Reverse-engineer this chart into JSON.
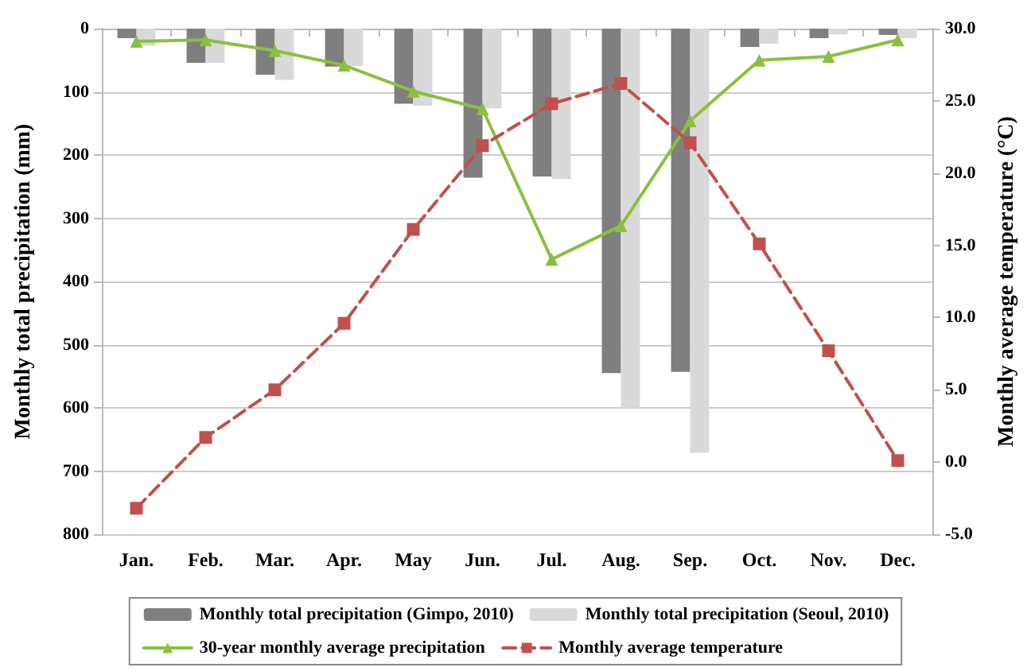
{
  "chart_data": {
    "type": "bar",
    "xlabel": null,
    "ylabel": "Monthly total precipitation (mm)",
    "y2label": "Monthly average temperature (°C)",
    "categories": [
      "Jan.",
      "Feb.",
      "Mar.",
      "Apr.",
      "May",
      "Jun.",
      "Jul.",
      "Aug.",
      "Sep.",
      "Oct.",
      "Nov.",
      "Dec."
    ],
    "series": [
      {
        "name": "Monthly total precipitation (Gimpo, 2010)",
        "color": "#7f7f7f",
        "values": [
          15,
          54,
          73,
          60,
          119,
          236,
          234,
          545,
          543,
          29,
          15,
          10
        ]
      },
      {
        "name": "Monthly total precipitation (Seoul, 2010)",
        "color": "#d9d9d9",
        "values": [
          27,
          54,
          81,
          59,
          122,
          126,
          238,
          600,
          671,
          24,
          9,
          15
        ]
      },
      {
        "name": "30-year monthly average precipitation",
        "type": "line",
        "color": "#8cbf3f",
        "marker": "triangle",
        "line_style": "solid",
        "values": [
          20,
          18,
          35,
          58,
          99,
          127,
          365,
          312,
          146,
          50,
          44,
          18
        ]
      },
      {
        "name": "Monthly average temperature",
        "type": "line",
        "axis": "y2",
        "color": "#c0504d",
        "marker": "square",
        "line_style": "dashed",
        "values": [
          -3.2,
          1.7,
          5.0,
          9.6,
          16.1,
          21.9,
          24.8,
          26.2,
          22.1,
          15.1,
          7.7,
          0.1
        ]
      }
    ],
    "ylim": [
      800,
      0
    ],
    "yticks": [
      0,
      100,
      200,
      300,
      400,
      500,
      600,
      700,
      800
    ],
    "y2lim": [
      -5,
      30
    ],
    "y2ticks": [
      {
        "value": -5,
        "label": "-5.0"
      },
      {
        "value": 0,
        "label": "0.0"
      },
      {
        "value": 5,
        "label": "5.0"
      },
      {
        "value": 10,
        "label": "10.0"
      },
      {
        "value": 15,
        "label": "15.0"
      },
      {
        "value": 20,
        "label": "20.0"
      },
      {
        "value": 25,
        "label": "25.0"
      },
      {
        "value": 30,
        "label": "30.0"
      }
    ],
    "grid": "y",
    "legend": "bottom"
  }
}
